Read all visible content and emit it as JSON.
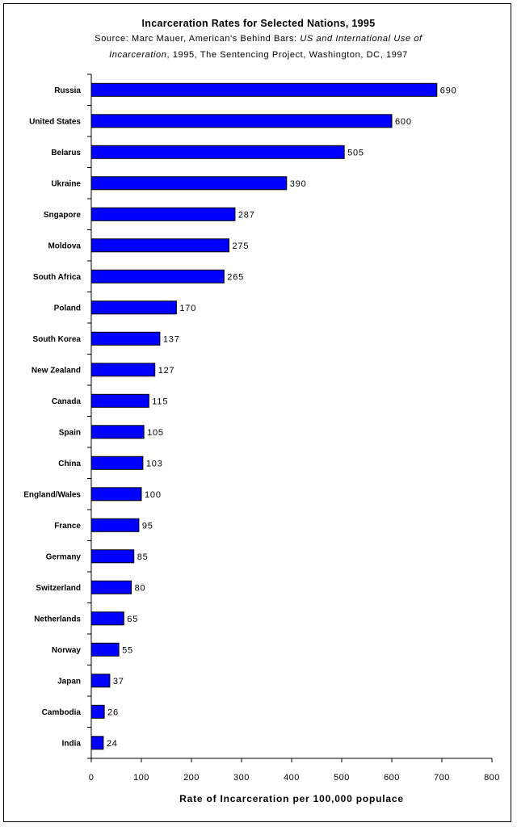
{
  "chart_data": {
    "type": "bar",
    "orientation": "horizontal",
    "title": "Incarceration Rates for Selected Nations, 1995",
    "source_prefix": "Source:  Marc Mauer, American's Behind Bars: ",
    "source_italic_1": "US and International Use of",
    "source_italic_2": "Incarceration",
    "source_suffix": ", 1995, The Sentencing Project, Washington, DC, 1997",
    "xlabel": "Rate of Incarceration per 100,000 populace",
    "xlim": [
      0,
      800
    ],
    "xticks": [
      "0",
      "100",
      "200",
      "300",
      "400",
      "500",
      "600",
      "700",
      "800"
    ],
    "categories": [
      "Russia",
      "United States",
      "Belarus",
      "Ukraine",
      "Sngapore",
      "Moldova",
      "South Africa",
      "Poland",
      "South Korea",
      "New Zealand",
      "Canada",
      "Spain",
      "China",
      "England/Wales",
      "France",
      "Germany",
      "Switzerland",
      "Netherlands",
      "Norway",
      "Japan",
      "Cambodia",
      "India"
    ],
    "values": [
      690,
      600,
      505,
      390,
      287,
      275,
      265,
      170,
      137,
      127,
      115,
      105,
      103,
      100,
      95,
      85,
      80,
      65,
      55,
      37,
      26,
      24
    ],
    "bar_color": "#0000FF",
    "bar_outline": "#000000",
    "grid": false,
    "legend": "none"
  }
}
